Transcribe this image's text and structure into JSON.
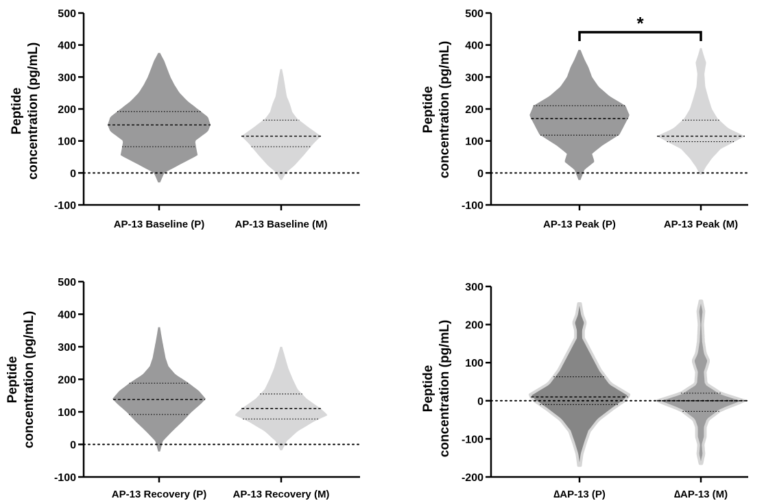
{
  "chart_data": [
    {
      "type": "violin",
      "ylabel_lines": [
        "Peptide",
        "concentration (pg/mL)"
      ],
      "ylim": [
        -100,
        500
      ],
      "yticks": [
        -100,
        0,
        100,
        200,
        300,
        400,
        500
      ],
      "zero_line": true,
      "categories": [
        "AP-13 Baseline (P)",
        "AP-13 Baseline (M)"
      ],
      "colors": [
        "#9a9a9b",
        "#d7d7d8"
      ],
      "violins": [
        {
          "median": 150,
          "q1": 82,
          "q3": 192,
          "profile": [
            [
              -30,
              0.02
            ],
            [
              0,
              0.1
            ],
            [
              30,
              0.45
            ],
            [
              55,
              0.75
            ],
            [
              80,
              0.72
            ],
            [
              100,
              0.7
            ],
            [
              130,
              0.95
            ],
            [
              150,
              1.0
            ],
            [
              175,
              0.95
            ],
            [
              200,
              0.75
            ],
            [
              225,
              0.55
            ],
            [
              250,
              0.4
            ],
            [
              275,
              0.3
            ],
            [
              300,
              0.22
            ],
            [
              325,
              0.16
            ],
            [
              350,
              0.1
            ],
            [
              375,
              0.02
            ]
          ]
        },
        {
          "median": 115,
          "q1": 82,
          "q3": 165,
          "profile": [
            [
              -22,
              0.02
            ],
            [
              0,
              0.12
            ],
            [
              25,
              0.35
            ],
            [
              60,
              0.6
            ],
            [
              90,
              0.8
            ],
            [
              115,
              1.0
            ],
            [
              140,
              0.72
            ],
            [
              170,
              0.4
            ],
            [
              190,
              0.28
            ],
            [
              215,
              0.22
            ],
            [
              240,
              0.14
            ],
            [
              270,
              0.1
            ],
            [
              300,
              0.06
            ],
            [
              325,
              0.02
            ]
          ]
        }
      ],
      "significance": null
    },
    {
      "type": "violin",
      "ylabel_lines": [
        "Peptide",
        "concentration (pg/mL)"
      ],
      "ylim": [
        -100,
        500
      ],
      "yticks": [
        -100,
        0,
        100,
        200,
        300,
        400,
        500
      ],
      "zero_line": true,
      "categories": [
        "AP-13 Peak (P)",
        "AP-13 Peak (M)"
      ],
      "colors": [
        "#9a9a9b",
        "#d7d7d8"
      ],
      "violins": [
        {
          "median": 170,
          "q1": 118,
          "q3": 210,
          "profile": [
            [
              -22,
              0.02
            ],
            [
              10,
              0.1
            ],
            [
              35,
              0.3
            ],
            [
              60,
              0.25
            ],
            [
              85,
              0.45
            ],
            [
              120,
              0.8
            ],
            [
              150,
              0.9
            ],
            [
              180,
              1.0
            ],
            [
              210,
              0.92
            ],
            [
              240,
              0.6
            ],
            [
              270,
              0.38
            ],
            [
              300,
              0.25
            ],
            [
              330,
              0.18
            ],
            [
              355,
              0.1
            ],
            [
              385,
              0.02
            ]
          ]
        },
        {
          "median": 115,
          "q1": 98,
          "q3": 165,
          "profile": [
            [
              -5,
              0.02
            ],
            [
              20,
              0.12
            ],
            [
              45,
              0.25
            ],
            [
              75,
              0.45
            ],
            [
              100,
              0.8
            ],
            [
              115,
              1.0
            ],
            [
              140,
              0.62
            ],
            [
              170,
              0.38
            ],
            [
              200,
              0.25
            ],
            [
              235,
              0.17
            ],
            [
              270,
              0.1
            ],
            [
              310,
              0.08
            ],
            [
              345,
              0.12
            ],
            [
              370,
              0.06
            ],
            [
              390,
              0.02
            ]
          ]
        }
      ],
      "significance": {
        "label": "*",
        "y": 440
      }
    },
    {
      "type": "violin",
      "ylabel_lines": [
        "Peptide",
        "concentration (pg/mL)"
      ],
      "ylim": [
        -100,
        500
      ],
      "yticks": [
        -100,
        0,
        100,
        200,
        300,
        400,
        500
      ],
      "zero_line": true,
      "categories": [
        "AP-13 Recovery (P)",
        "AP-13 Recovery (M)"
      ],
      "colors": [
        "#9a9a9b",
        "#d7d7d8"
      ],
      "violins": [
        {
          "median": 138,
          "q1": 92,
          "q3": 188,
          "profile": [
            [
              -22,
              0.02
            ],
            [
              10,
              0.08
            ],
            [
              40,
              0.28
            ],
            [
              70,
              0.5
            ],
            [
              100,
              0.7
            ],
            [
              125,
              0.9
            ],
            [
              140,
              1.0
            ],
            [
              165,
              0.85
            ],
            [
              190,
              0.62
            ],
            [
              215,
              0.35
            ],
            [
              240,
              0.2
            ],
            [
              265,
              0.14
            ],
            [
              295,
              0.1
            ],
            [
              325,
              0.06
            ],
            [
              360,
              0.02
            ]
          ]
        },
        {
          "median": 110,
          "q1": 78,
          "q3": 155,
          "profile": [
            [
              -18,
              0.02
            ],
            [
              10,
              0.12
            ],
            [
              40,
              0.35
            ],
            [
              70,
              0.7
            ],
            [
              90,
              1.0
            ],
            [
              110,
              0.85
            ],
            [
              140,
              0.55
            ],
            [
              170,
              0.35
            ],
            [
              200,
              0.25
            ],
            [
              235,
              0.15
            ],
            [
              270,
              0.08
            ],
            [
              300,
              0.02
            ]
          ]
        }
      ],
      "significance": null
    },
    {
      "type": "violin",
      "ylabel_lines": [
        "Peptide",
        "concentration (pg/mL)"
      ],
      "ylim": [
        -200,
        300
      ],
      "yticks": [
        -200,
        -100,
        0,
        100,
        200,
        300
      ],
      "zero_line": true,
      "categories": [
        "∆AP-13 (P)",
        "∆AP-13 (M)"
      ],
      "colors": [
        "#868686",
        "#9d9d9e"
      ],
      "violins": [
        {
          "median": 10,
          "q1": -10,
          "q3": 63,
          "profile": [
            [
              -170,
              0.02
            ],
            [
              -140,
              0.05
            ],
            [
              -110,
              0.12
            ],
            [
              -80,
              0.2
            ],
            [
              -50,
              0.38
            ],
            [
              -20,
              0.68
            ],
            [
              0,
              0.9
            ],
            [
              15,
              1.0
            ],
            [
              45,
              0.62
            ],
            [
              80,
              0.42
            ],
            [
              115,
              0.28
            ],
            [
              140,
              0.18
            ],
            [
              165,
              0.08
            ],
            [
              185,
              0.08
            ],
            [
              205,
              0.12
            ],
            [
              225,
              0.06
            ],
            [
              255,
              0.02
            ]
          ]
        },
        {
          "median": 0,
          "q1": -28,
          "q3": 20,
          "profile": [
            [
              -165,
              0.02
            ],
            [
              -140,
              0.07
            ],
            [
              -115,
              0.05
            ],
            [
              -95,
              0.1
            ],
            [
              -70,
              0.1
            ],
            [
              -50,
              0.16
            ],
            [
              -25,
              0.45
            ],
            [
              0,
              1.0
            ],
            [
              20,
              0.45
            ],
            [
              45,
              0.12
            ],
            [
              75,
              0.1
            ],
            [
              105,
              0.18
            ],
            [
              125,
              0.1
            ],
            [
              155,
              0.06
            ],
            [
              200,
              0.04
            ],
            [
              235,
              0.07
            ],
            [
              262,
              0.02
            ]
          ]
        }
      ],
      "significance": null
    }
  ]
}
